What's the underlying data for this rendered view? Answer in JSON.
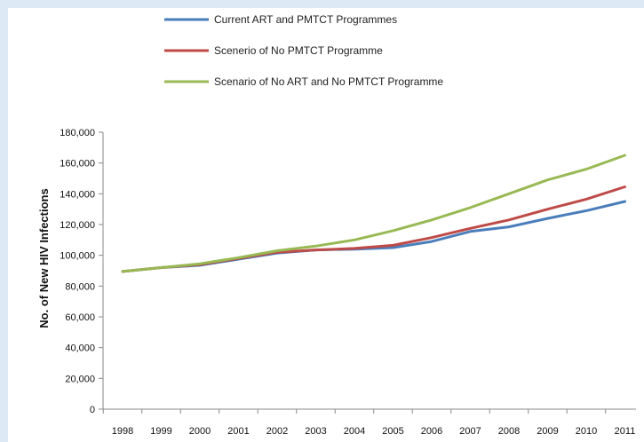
{
  "chart_data": {
    "type": "line",
    "title": "",
    "xlabel": "",
    "ylabel": "No. of New HIV Infections",
    "categories": [
      "1998",
      "1999",
      "2000",
      "2001",
      "2002",
      "2003",
      "2004",
      "2005",
      "2006",
      "2007",
      "2008",
      "2009",
      "2010",
      "2011"
    ],
    "ylim": [
      0,
      180000
    ],
    "yticks": [
      "0",
      "20,000",
      "40,000",
      "60,000",
      "80,000",
      "100,000",
      "120,000",
      "140,000",
      "160,000",
      "180,000"
    ],
    "grid": false,
    "legend_position": "top",
    "series": [
      {
        "name": "Current ART and PMTCT Programmes",
        "color": "#4a7ebb",
        "values": [
          89500,
          92000,
          93500,
          97500,
          101500,
          103500,
          104000,
          105000,
          109000,
          115500,
          118500,
          124000,
          129000,
          135000
        ]
      },
      {
        "name": "Scenerio of No PMTCT Programme",
        "color": "#be4b48",
        "values": [
          89500,
          92000,
          94000,
          98000,
          102000,
          103500,
          104500,
          106500,
          111500,
          117500,
          123000,
          130000,
          136500,
          144500
        ]
      },
      {
        "name": "Scenario of No ART and No PMTCT Programme",
        "color": "#98b954",
        "values": [
          89500,
          92000,
          94500,
          98500,
          103000,
          106000,
          110000,
          116000,
          123000,
          131000,
          140000,
          149000,
          156000,
          165000
        ]
      }
    ]
  }
}
